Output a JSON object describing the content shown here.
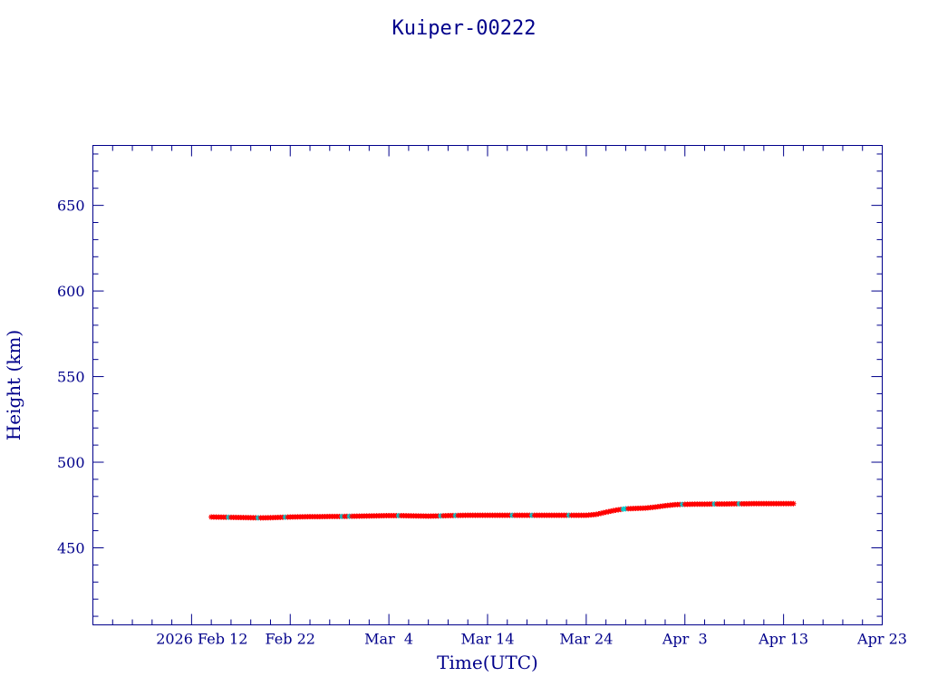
{
  "chart_data": {
    "type": "scatter",
    "title": "Kuiper-00222",
    "xlabel": "Time(UTC)",
    "ylabel": "Height (km)",
    "x_ticks": [
      {
        "date": "2026-02-12",
        "label": "2026 Feb 12"
      },
      {
        "date": "2026-02-22",
        "label": "Feb 22"
      },
      {
        "date": "2026-03-04",
        "label": "Mar  4"
      },
      {
        "date": "2026-03-14",
        "label": "Mar 14"
      },
      {
        "date": "2026-03-24",
        "label": "Mar 24"
      },
      {
        "date": "2026-04-03",
        "label": "Apr  3"
      },
      {
        "date": "2026-04-13",
        "label": "Apr 13"
      },
      {
        "date": "2026-04-23",
        "label": "Apr 23"
      }
    ],
    "y_ticks": [
      450,
      500,
      550,
      600,
      650
    ],
    "xlim": [
      "2026-02-02",
      "2026-04-23"
    ],
    "ylim": [
      405,
      685
    ],
    "grid": false,
    "colors": {
      "axis": "#00008b",
      "series_main": "#ff0000",
      "series_alt": "#00ced1"
    },
    "series": [
      {
        "points": [
          [
            "2026-02-14",
            468.0
          ],
          [
            "2026-02-15",
            467.9
          ],
          [
            "2026-02-16",
            467.8
          ],
          [
            "2026-02-17",
            467.7
          ],
          [
            "2026-02-18",
            467.6
          ],
          [
            "2026-02-19",
            467.5
          ],
          [
            "2026-02-20",
            467.6
          ],
          [
            "2026-02-21",
            467.8
          ],
          [
            "2026-02-22",
            468.0
          ],
          [
            "2026-02-23",
            468.1
          ],
          [
            "2026-02-24",
            468.2
          ],
          [
            "2026-02-25",
            468.2
          ],
          [
            "2026-02-26",
            468.3
          ],
          [
            "2026-02-27",
            468.3
          ],
          [
            "2026-02-28",
            468.4
          ],
          [
            "2026-03-01",
            468.5
          ],
          [
            "2026-03-02",
            468.6
          ],
          [
            "2026-03-03",
            468.7
          ],
          [
            "2026-03-04",
            468.8
          ],
          [
            "2026-03-05",
            468.8
          ],
          [
            "2026-03-06",
            468.7
          ],
          [
            "2026-03-07",
            468.6
          ],
          [
            "2026-03-08",
            468.5
          ],
          [
            "2026-03-09",
            468.6
          ],
          [
            "2026-03-10",
            468.8
          ],
          [
            "2026-03-11",
            468.9
          ],
          [
            "2026-03-12",
            469.0
          ],
          [
            "2026-03-13",
            469.0
          ],
          [
            "2026-03-14",
            469.0
          ],
          [
            "2026-03-15",
            469.0
          ],
          [
            "2026-03-16",
            469.0
          ],
          [
            "2026-03-17",
            469.0
          ],
          [
            "2026-03-18",
            469.0
          ],
          [
            "2026-03-19",
            469.0
          ],
          [
            "2026-03-20",
            469.0
          ],
          [
            "2026-03-21",
            469.0
          ],
          [
            "2026-03-22",
            469.0
          ],
          [
            "2026-03-23",
            469.0
          ],
          [
            "2026-03-24",
            469.0
          ],
          [
            "2026-03-25",
            469.5
          ],
          [
            "2026-03-26",
            470.8
          ],
          [
            "2026-03-27",
            472.0
          ],
          [
            "2026-03-28",
            472.8
          ],
          [
            "2026-03-29",
            473.0
          ],
          [
            "2026-03-30",
            473.2
          ],
          [
            "2026-03-31",
            473.8
          ],
          [
            "2026-04-01",
            474.6
          ],
          [
            "2026-04-02",
            475.2
          ],
          [
            "2026-04-03",
            475.4
          ],
          [
            "2026-04-04",
            475.5
          ],
          [
            "2026-04-05",
            475.5
          ],
          [
            "2026-04-06",
            475.6
          ],
          [
            "2026-04-07",
            475.6
          ],
          [
            "2026-04-08",
            475.7
          ],
          [
            "2026-04-09",
            475.7
          ],
          [
            "2026-04-10",
            475.8
          ],
          [
            "2026-04-11",
            475.8
          ],
          [
            "2026-04-12",
            475.8
          ],
          [
            "2026-04-13",
            475.8
          ],
          [
            "2026-04-14",
            475.8
          ]
        ]
      }
    ]
  }
}
